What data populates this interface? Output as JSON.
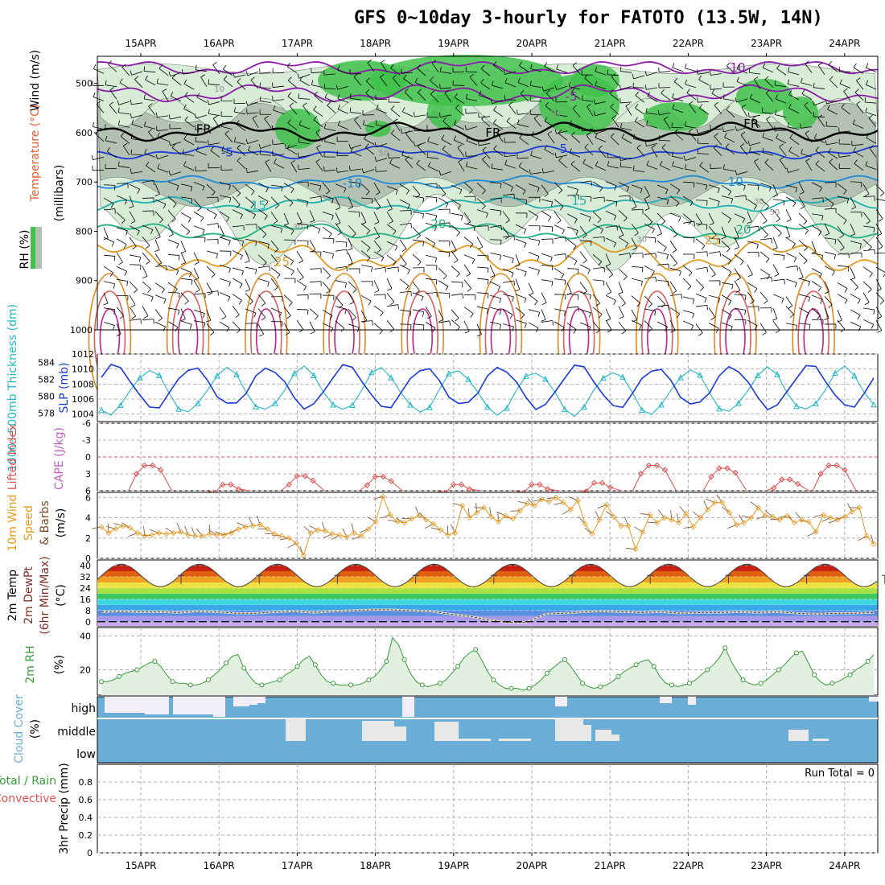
{
  "title": "GFS 0~10day 3-hourly for FATOTO (13.5W, 14N)",
  "colors": {
    "rh_green": "#3fc24a",
    "rh_light": "#d8ecd8",
    "rh_grey": "#b4c2b4",
    "cloud_blue": "#6aaed8",
    "slp_blue": "#1a3bd8",
    "thick_cyan": "#25b7c6",
    "lifted_red": "#e05050",
    "wind_orange": "#e89a20",
    "rh2m_green": "#3a9a3a"
  },
  "chart_data": [
    {
      "panel": "upper-air",
      "type": "heatmap",
      "dates": [
        "15APR",
        "16APR",
        "17APR",
        "18APR",
        "19APR",
        "20APR",
        "21APR",
        "22APR",
        "23APR",
        "24APR"
      ],
      "ylabel_pressure": "(millibars)",
      "yticks": [
        "500",
        "600",
        "700",
        "800",
        "900",
        "1000"
      ],
      "legend_rh": "RH (%)",
      "legend_temp": "Temperature (°C)",
      "legend_wind": "Wind (m/s)",
      "contour_labels": [
        {
          "text": "-10",
          "c": "#8a1aa8",
          "d": 7.4,
          "p": 468
        },
        {
          "text": "-5",
          "c": "#8a1aa8",
          "d": 5.3,
          "p": 527
        },
        {
          "text": "FR",
          "c": "#000",
          "d": 0.6,
          "p": 593
        },
        {
          "text": "FR",
          "c": "#000",
          "d": 4.3,
          "p": 600
        },
        {
          "text": "FR",
          "c": "#000",
          "d": 7.6,
          "p": 582
        },
        {
          "text": "-5",
          "c": "#1a3bd8",
          "d": 0.9,
          "p": 640
        },
        {
          "text": "5",
          "c": "#1a3bd8",
          "d": 5.2,
          "p": 633
        },
        {
          "text": "-10",
          "c": "#1e8ad8",
          "d": 2.5,
          "p": 703
        },
        {
          "text": "10",
          "c": "#1e8ad8",
          "d": 7.4,
          "p": 700
        },
        {
          "text": "15",
          "c": "#20b0b0",
          "d": 1.3,
          "p": 748
        },
        {
          "text": "15",
          "c": "#20b0b0",
          "d": 5.4,
          "p": 738
        },
        {
          "text": "20",
          "c": "#20b080",
          "d": 3.6,
          "p": 785
        },
        {
          "text": "20",
          "c": "#20b080",
          "d": 7.5,
          "p": 797
        },
        {
          "text": "25",
          "c": "#e09a20",
          "d": 1.6,
          "p": 862
        },
        {
          "text": "25",
          "c": "#e09a20",
          "d": 7.1,
          "p": 818
        }
      ],
      "rh_labels": [
        {
          "text": "10",
          "d": 0.8,
          "p": 510
        },
        {
          "text": "50",
          "d": 2.9,
          "p": 640
        },
        {
          "text": "50",
          "d": 5.1,
          "p": 560
        },
        {
          "text": "30",
          "d": 1.8,
          "p": 790
        },
        {
          "text": "30",
          "d": 6.2,
          "p": 815
        },
        {
          "text": "30",
          "d": 7.7,
          "p": 738
        },
        {
          "text": "50",
          "d": 7.9,
          "p": 760
        }
      ]
    },
    {
      "panel": "slp-thickness",
      "type": "line",
      "ylabel_left": "1000~500mb Thickness (dm)",
      "ylabel_right": "SLP (mb)",
      "thickness_ticks": [
        "584",
        "582",
        "580",
        "578"
      ],
      "slp_ticks": [
        "1012",
        "1010",
        "1008",
        "1006",
        "1004"
      ],
      "thickness_range": [
        577,
        585
      ],
      "slp_range": [
        1003,
        1012
      ],
      "slp_min": 1004.5,
      "slp_max": 1010.8,
      "slp_mean": 1007.6,
      "thick_min": 577.6,
      "thick_max": 583.6,
      "thick_mean": 580.6
    },
    {
      "panel": "lifted-cape",
      "type": "line",
      "ylabel_lifted": "Lifted Index",
      "ylabel_cape": "CAPE (J/kg)",
      "yticks": [
        "-6",
        "-3",
        "0",
        "3",
        "6"
      ],
      "yrange": [
        -6,
        6
      ],
      "peaks": [
        {
          "d": 0.15,
          "v": 1.5
        },
        {
          "d": 1.15,
          "v": 4.9
        },
        {
          "d": 2.1,
          "v": 3.4
        },
        {
          "d": 3.1,
          "v": 3.5
        },
        {
          "d": 4.1,
          "v": 4.9
        },
        {
          "d": 5.1,
          "v": 4.9
        },
        {
          "d": 5.9,
          "v": 4.6
        },
        {
          "d": 6.6,
          "v": 1.5
        },
        {
          "d": 7.5,
          "v": 2.0
        },
        {
          "d": 8.3,
          "v": 4.0
        },
        {
          "d": 8.9,
          "v": 1.5
        }
      ]
    },
    {
      "panel": "wind10m",
      "type": "line",
      "ylabel_main": "10m Wind",
      "ylabel_speed": "Speed",
      "ylabel_barbs": "& Barbs",
      "yunit": "(m/s)",
      "yticks": [
        "6",
        "4",
        "2",
        "0"
      ],
      "yrange": [
        0,
        6.5
      ],
      "speeds": [
        3.1,
        2.5,
        2.9,
        3.2,
        3.0,
        2.5,
        2.2,
        2.3,
        2.5,
        2.4,
        2.5,
        2.6,
        2.3,
        2.2,
        2.2,
        2.4,
        2.3,
        2.3,
        2.5,
        2.9,
        3.1,
        3.2,
        3.3,
        2.9,
        2.4,
        2.2,
        2.0,
        1.5,
        0.3,
        2.5,
        2.8,
        2.7,
        2.4,
        2.3,
        2.1,
        2.5,
        2.2,
        2.9,
        3.6,
        6.1,
        4.3,
        3.6,
        3.5,
        3.9,
        4.2,
        3.8,
        3.4,
        2.8,
        2.3,
        2.5,
        5.2,
        4.0,
        4.5,
        5.0,
        4.1,
        3.6,
        4.2,
        3.9,
        4.7,
        5.4,
        5.2,
        5.8,
        5.6,
        6.0,
        5.5,
        4.8,
        5.7,
        3.4,
        2.4,
        3.8,
        5.3,
        4.1,
        3.2,
        3.2,
        0.9,
        2.6,
        4.3,
        3.5,
        4.0,
        3.8,
        3.5,
        4.4,
        3.1,
        4.0,
        4.8,
        5.5,
        5.5,
        4.5,
        3.3,
        3.5,
        4.0,
        5.0,
        4.2,
        4.1,
        3.8,
        4.2,
        3.5,
        3.8,
        3.6,
        2.6,
        4.3,
        4.0,
        3.8,
        4.1,
        4.6,
        5.0,
        2.2,
        1.4
      ]
    },
    {
      "panel": "temp2m",
      "type": "area",
      "ylabel_temp": "2m Temp",
      "ylabel_dew": "2m DewPt",
      "ylabel_minmax": "(6hr Min/Max)",
      "yunit": "(°C)",
      "yticks": [
        "40",
        "32",
        "24",
        "16",
        "8",
        "0"
      ],
      "yrange": [
        -3,
        44
      ],
      "temp_max": 41,
      "temp_min": 25,
      "dew_series": [
        7,
        7.5,
        7,
        7,
        6.5,
        7.5,
        7,
        6,
        6,
        7,
        7.5,
        6.5,
        7.5,
        8,
        8.5,
        8.5,
        8,
        7.5,
        5.5,
        4,
        1.5,
        -0.5,
        -0.5,
        5.5,
        6,
        7,
        7.5,
        7,
        6.5,
        7,
        6,
        6.5,
        6.5,
        7,
        6.5,
        7,
        6,
        5.5,
        6,
        6,
        6.5
      ]
    },
    {
      "panel": "rh2m",
      "type": "area",
      "ylabel": "2m RH",
      "yunit": "(%)",
      "yticks": [
        "40",
        "20"
      ],
      "yrange": [
        5,
        45
      ],
      "values": [
        13,
        13,
        14,
        16,
        18,
        19,
        20,
        22,
        24,
        25,
        22,
        17,
        13,
        12,
        12,
        11,
        11,
        12,
        14,
        17,
        20,
        24,
        28,
        29,
        21,
        16,
        12,
        11,
        12,
        13,
        14,
        17,
        19,
        22,
        26,
        28,
        23,
        17,
        13,
        12,
        11,
        11,
        11,
        11,
        12,
        14,
        16,
        20,
        25,
        39,
        35,
        26,
        18,
        13,
        11,
        10,
        11,
        12,
        14,
        18,
        22,
        27,
        30,
        32,
        26,
        19,
        14,
        11,
        9,
        9,
        9,
        8,
        9,
        11,
        14,
        18,
        21,
        24,
        26,
        22,
        17,
        12,
        10,
        9,
        10,
        11,
        13,
        16,
        19,
        21,
        23,
        25,
        26,
        22,
        16,
        12,
        11,
        10,
        11,
        12,
        14,
        17,
        20,
        23,
        27,
        33,
        25,
        19,
        14,
        12,
        11,
        12,
        14,
        17,
        20,
        23,
        27,
        30,
        31,
        24,
        17,
        13,
        11,
        12,
        13,
        15,
        17,
        20,
        22,
        25,
        29
      ]
    },
    {
      "panel": "cloud",
      "type": "bar",
      "ylabel": "Cloud Cover",
      "yunit": "(%)",
      "levels": [
        "high",
        "middle",
        "low"
      ]
    },
    {
      "panel": "precip",
      "type": "bar",
      "ylabel_total": "Total / Rain",
      "ylabel_conv": "Convective",
      "ylabel_main": "3hr Precip (mm)",
      "yticks": [
        "0.8",
        "0.6",
        "0.4",
        "0.2",
        "0"
      ],
      "yrange": [
        0,
        1
      ],
      "run_total": "Run Total = 0"
    }
  ]
}
